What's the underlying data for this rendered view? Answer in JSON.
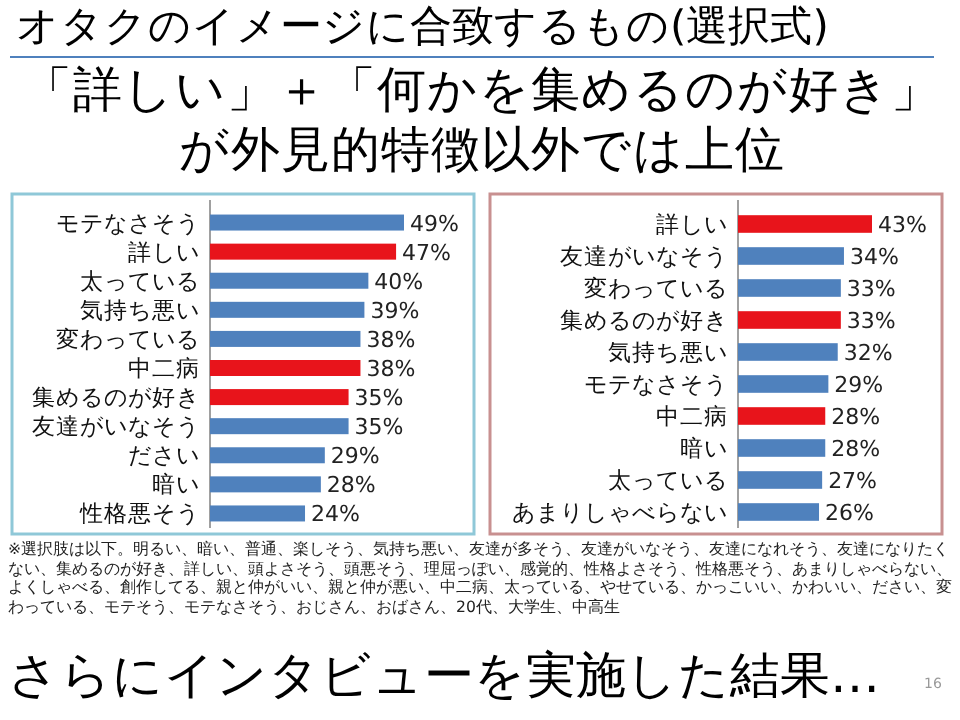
{
  "chart_data": [
    {
      "type": "bar",
      "orientation": "horizontal",
      "title": "オタクのイメージに合致するもの(選択式)",
      "subtitle": "「詳しい」＋「何かを集めるのが好き」が外見的特徴以外では上位",
      "categories": [
        "モテなさそう",
        "詳しい",
        "太っている",
        "気持ち悪い",
        "変わっている",
        "中二病",
        "集めるのが好き",
        "友達がいなそう",
        "ださい",
        "暗い",
        "性格悪そう"
      ],
      "values": [
        49,
        47,
        40,
        39,
        38,
        38,
        35,
        35,
        29,
        28,
        24
      ],
      "value_labels": [
        "49%",
        "47%",
        "40%",
        "39%",
        "38%",
        "38%",
        "35%",
        "35%",
        "29%",
        "28%",
        "24%"
      ],
      "colors": [
        "#4f81bd",
        "#e8141b",
        "#4f81bd",
        "#4f81bd",
        "#4f81bd",
        "#e8141b",
        "#e8141b",
        "#4f81bd",
        "#4f81bd",
        "#4f81bd",
        "#4f81bd"
      ],
      "annotations": [
        "※選択肢は以下。明るい、暗い、普通、楽しそう、気持ち悪い、友達が多そう、友達がいなそう、友達になれそう、友達になりたくない、集めるのが好き、詳しい、頭よさそう、頭悪そう、理屈っぽい、感覚的、性格よさそう、性格悪そう、あまりしゃべらない、よくしゃべる、創作してる、親と仲がいい、親と仲が悪い、中二病、太っている、やせている、かっこいい、かわいい、ださい、変わっている、モテそう、モテなさそう、おじさん、おばさん、20代、大学生、中高生",
        "さらにインタビューを実施した結果…",
        "16"
      ]
    },
    {
      "type": "bar",
      "orientation": "horizontal",
      "categories": [
        "詳しい",
        "友達がいなそう",
        "変わっている",
        "集めるのが好き",
        "気持ち悪い",
        "モテなさそう",
        "中二病",
        "暗い",
        "太っている",
        "あまりしゃべらない"
      ],
      "values": [
        43,
        34,
        33,
        33,
        32,
        29,
        28,
        28,
        27,
        26
      ],
      "value_labels": [
        "43%",
        "34%",
        "33%",
        "33%",
        "32%",
        "29%",
        "28%",
        "28%",
        "27%",
        "26%"
      ],
      "colors": [
        "#e8141b",
        "#4f81bd",
        "#4f81bd",
        "#e8141b",
        "#4f81bd",
        "#4f81bd",
        "#e8141b",
        "#4f81bd",
        "#4f81bd",
        "#4f81bd"
      ]
    }
  ]
}
